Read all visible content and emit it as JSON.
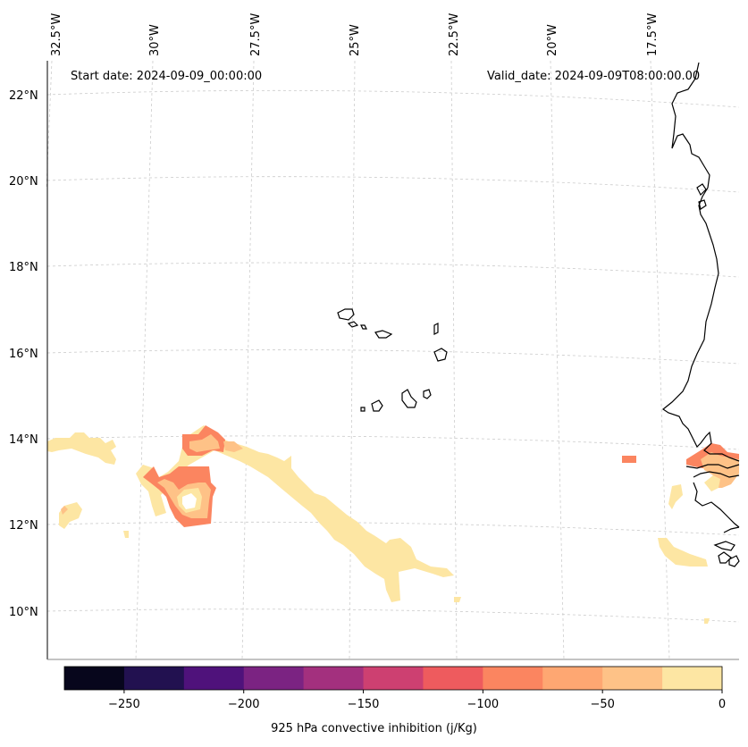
{
  "header": {
    "start_date": "Start date: 2024-09-09_00:00:00",
    "valid_date": "Valid_date: 2024-09-09T08:00:00.00"
  },
  "map": {
    "lon_labels": [
      "32.5°W",
      "30°W",
      "27.5°W",
      "25°W",
      "22.5°W",
      "20°W",
      "17.5°W"
    ],
    "lat_labels": [
      "22°N",
      "20°N",
      "18°N",
      "16°N",
      "14°N",
      "12°N",
      "10°N"
    ],
    "gridlines": "dashed light gray",
    "coastline_color": "#000000"
  },
  "colorbar": {
    "label": "925 hPa convective inhibition (j/Kg)",
    "ticks": [
      "−250",
      "−200",
      "−150",
      "−100",
      "−50",
      "0"
    ],
    "colors": [
      "#07061c",
      "#221150",
      "#4f127b",
      "#7b2382",
      "#a3307e",
      "#cd4071",
      "#ee5b5e",
      "#fb8560",
      "#fea772",
      "#fec287",
      "#fde6a3"
    ],
    "min": -275,
    "max": 0
  }
}
